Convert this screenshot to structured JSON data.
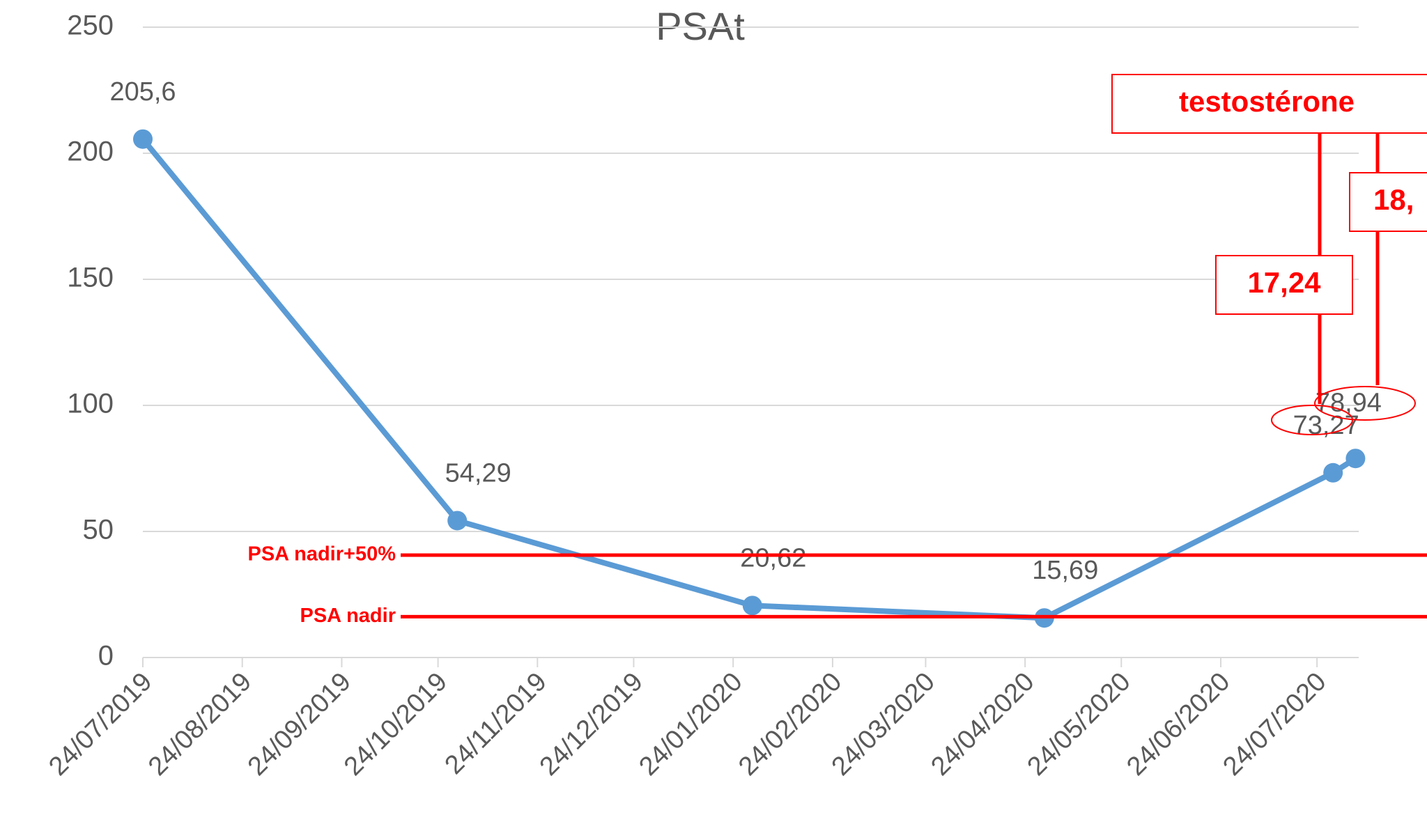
{
  "chart_data": {
    "type": "line",
    "title": "PSAt",
    "x": [
      "2019-07-24",
      "2019-10-30",
      "2020-01-30",
      "2020-04-30",
      "2020-07-29",
      "2020-08-05"
    ],
    "series": [
      {
        "name": "PSAt",
        "color": "#5b9bd5",
        "values": [
          205.6,
          54.29,
          20.62,
          15.69,
          73.27,
          78.94
        ],
        "value_labels": [
          "205,6",
          "54,29",
          "20,62",
          "15,69",
          "73,27",
          "78,94"
        ]
      }
    ],
    "xlim": [
      "2019-07-24",
      "2020-08-06"
    ],
    "xticks": [
      {
        "value": "2019-07-24",
        "label": "24/07/2019"
      },
      {
        "value": "2019-08-24",
        "label": "24/08/2019"
      },
      {
        "value": "2019-09-24",
        "label": "24/09/2019"
      },
      {
        "value": "2019-10-24",
        "label": "24/10/2019"
      },
      {
        "value": "2019-11-24",
        "label": "24/11/2019"
      },
      {
        "value": "2019-12-24",
        "label": "24/12/2019"
      },
      {
        "value": "2020-01-24",
        "label": "24/01/2020"
      },
      {
        "value": "2020-02-24",
        "label": "24/02/2020"
      },
      {
        "value": "2020-03-24",
        "label": "24/03/2020"
      },
      {
        "value": "2020-04-24",
        "label": "24/04/2020"
      },
      {
        "value": "2020-05-24",
        "label": "24/05/2020"
      },
      {
        "value": "2020-06-24",
        "label": "24/06/2020"
      },
      {
        "value": "2020-07-24",
        "label": "24/07/2020"
      }
    ],
    "ylim": [
      0,
      250
    ],
    "yticks": [
      0,
      50,
      100,
      150,
      200,
      250
    ],
    "grid": true,
    "reference_lines": [
      {
        "label": "PSA nadir+50%",
        "value": 40.6,
        "color": "#ff0000"
      },
      {
        "label": "PSA nadir",
        "value": 16.2,
        "color": "#ff0000"
      }
    ],
    "annotations": [
      "testostérone",
      "17,24",
      "18,"
    ]
  }
}
